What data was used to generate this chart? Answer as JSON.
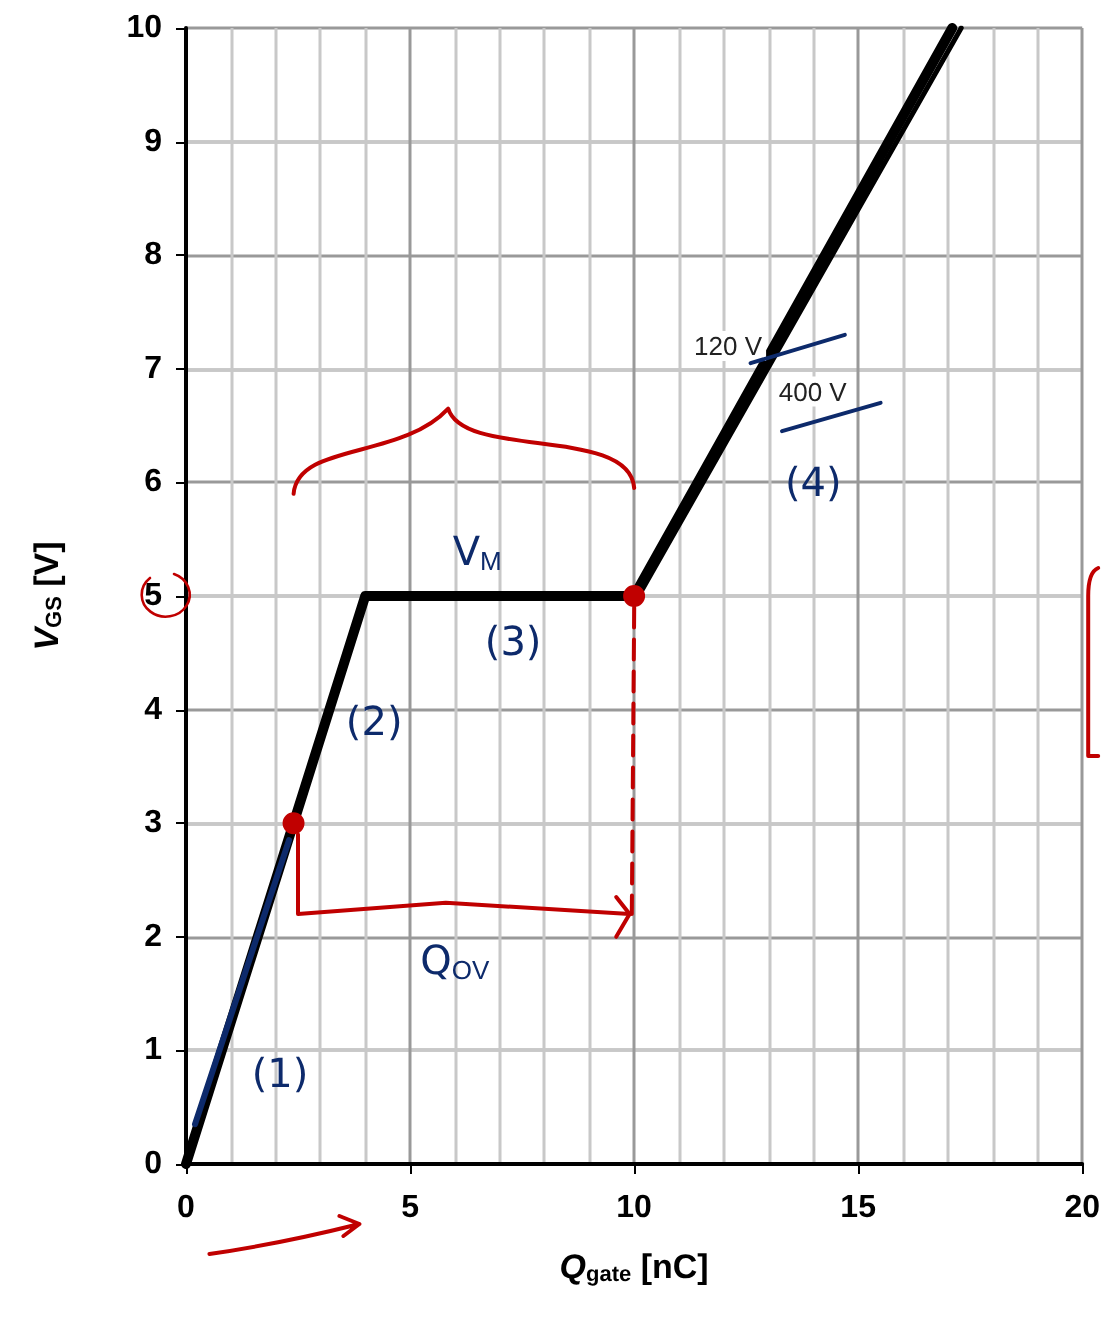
{
  "chart_data": {
    "type": "line",
    "xlabel": "Q$_{gate}$ [nC]",
    "ylabel": "V$_{GS}$ [V]",
    "series": [
      {
        "name": "120 V",
        "color": "#000000",
        "x": [
          0,
          4,
          10,
          17.1
        ],
        "values": [
          0,
          5,
          5,
          10
        ]
      },
      {
        "name": "400 V",
        "color": "#000000",
        "x": [
          0,
          4,
          10.1,
          17.3
        ],
        "values": [
          0,
          5,
          5,
          10
        ]
      }
    ],
    "xlim": [
      0,
      20
    ],
    "xticks": [
      0,
      5,
      10,
      15,
      20
    ],
    "ylim": [
      0,
      10
    ],
    "yticks": [
      0,
      1,
      2,
      3,
      4,
      5,
      6,
      7,
      8,
      9,
      10
    ],
    "grid": true,
    "legend": false,
    "marker": "none",
    "line_style": "solid",
    "annotations": [
      "(1)",
      "(2)",
      "(3)",
      "(4)",
      "V$_{M}$",
      "Q$_{OV}$"
    ]
  }
}
